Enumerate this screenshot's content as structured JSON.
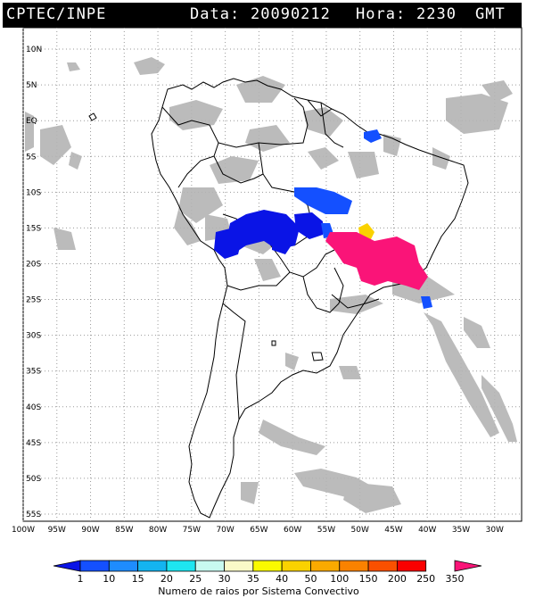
{
  "header": {
    "source": "CPTEC/INPE",
    "date_label": "Data:",
    "date_value": "20090212",
    "time_label": "Hora:",
    "time_value": "2230",
    "timezone": "GMT"
  },
  "map": {
    "lon_range": [
      -100,
      -26
    ],
    "lat_range": [
      -56,
      13
    ],
    "lat_ticks": [
      {
        "value": 10,
        "label": "10N"
      },
      {
        "value": 5,
        "label": "5N"
      },
      {
        "value": 0,
        "label": "EQ"
      },
      {
        "value": -5,
        "label": "5S"
      },
      {
        "value": -10,
        "label": "10S"
      },
      {
        "value": -15,
        "label": "15S"
      },
      {
        "value": -20,
        "label": "20S"
      },
      {
        "value": -25,
        "label": "25S"
      },
      {
        "value": -30,
        "label": "30S"
      },
      {
        "value": -35,
        "label": "35S"
      },
      {
        "value": -40,
        "label": "40S"
      },
      {
        "value": -45,
        "label": "45S"
      },
      {
        "value": -50,
        "label": "50S"
      },
      {
        "value": -55,
        "label": "55S"
      }
    ],
    "lon_ticks": [
      {
        "value": -100,
        "label": "100W"
      },
      {
        "value": -95,
        "label": "95W"
      },
      {
        "value": -90,
        "label": "90W"
      },
      {
        "value": -85,
        "label": "85W"
      },
      {
        "value": -80,
        "label": "80W"
      },
      {
        "value": -75,
        "label": "75W"
      },
      {
        "value": -70,
        "label": "70W"
      },
      {
        "value": -65,
        "label": "65W"
      },
      {
        "value": -60,
        "label": "60W"
      },
      {
        "value": -55,
        "label": "55W"
      },
      {
        "value": -50,
        "label": "50W"
      },
      {
        "value": -45,
        "label": "45W"
      },
      {
        "value": -40,
        "label": "40W"
      },
      {
        "value": -35,
        "label": "35W"
      },
      {
        "value": -30,
        "label": "30W"
      }
    ],
    "grid": true,
    "colors": {
      "cloud": "#b4b4b4",
      "coast": "#000000",
      "grid": "#9a9a9a"
    }
  },
  "colorbar": {
    "title": "Numero de raios por Sistema Convectivo",
    "ticks": [
      "1",
      "10",
      "15",
      "20",
      "25",
      "30",
      "35",
      "40",
      "50",
      "100",
      "150",
      "200",
      "250",
      "350"
    ],
    "colors": [
      "#0a14e6",
      "#1450ff",
      "#1e8cff",
      "#14b4f0",
      "#1ee6f0",
      "#c8faf0",
      "#fafac8",
      "#fafa00",
      "#fad200",
      "#faaa00",
      "#fa8200",
      "#fa5000",
      "#fa0000",
      "#fa1478"
    ]
  }
}
